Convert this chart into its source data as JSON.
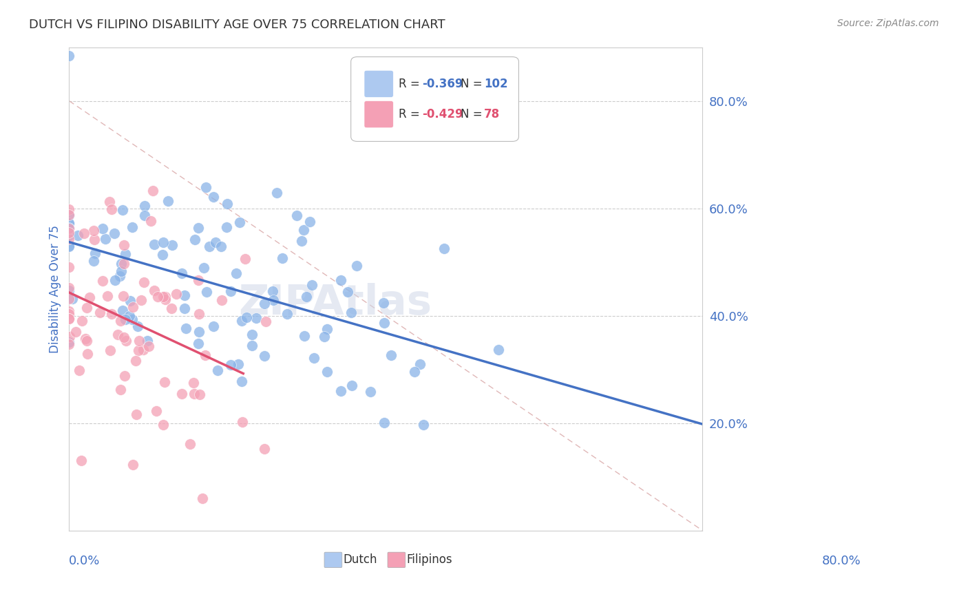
{
  "title": "DUTCH VS FILIPINO DISABILITY AGE OVER 75 CORRELATION CHART",
  "source": "Source: ZipAtlas.com",
  "ylabel": "Disability Age Over 75",
  "xlim": [
    0.0,
    0.8
  ],
  "ylim": [
    0.0,
    0.9
  ],
  "dutch_R": -0.369,
  "dutch_N": 102,
  "filipino_R": -0.429,
  "filipino_N": 78,
  "dutch_color": "#8ab4e8",
  "filipino_color": "#f4a0b5",
  "dutch_trend_color": "#4472c4",
  "filipino_trend_color": "#e05070",
  "diagonal_color": "#ddb0b0",
  "legend_color_dutch": "#adc9f0",
  "legend_color_filipino": "#f4a0b5",
  "title_color": "#333333",
  "tick_color": "#4472c4",
  "grid_color": "#cccccc",
  "background_color": "#ffffff",
  "watermark_text": "ZIPAtlas",
  "watermark_color": "#d0d8e8"
}
